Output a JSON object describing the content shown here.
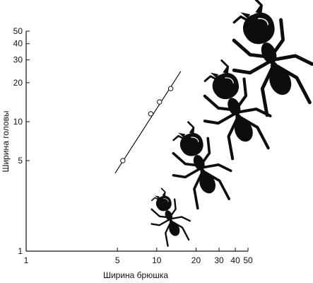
{
  "chart_data": {
    "type": "scatter",
    "x_scale": "log",
    "y_scale": "log",
    "xlabel": "Ширина брюшка",
    "ylabel": "Ширина головы",
    "xlim": [
      1,
      50
    ],
    "ylim": [
      1,
      50
    ],
    "x_ticks": [
      1,
      5,
      10,
      20,
      30,
      40,
      50
    ],
    "y_ticks": [
      1,
      5,
      10,
      20,
      30,
      40,
      50
    ],
    "x_tick_labels": [
      "1",
      "5",
      "10",
      "20",
      "30",
      "40",
      "50"
    ],
    "y_tick_labels": [
      "1",
      "5",
      "10",
      "20",
      "30",
      "40",
      "50"
    ],
    "grid": false,
    "points": [
      {
        "x": 5.5,
        "y": 5.0
      },
      {
        "x": 9.0,
        "y": 11.5
      },
      {
        "x": 10.5,
        "y": 14.2
      },
      {
        "x": 12.8,
        "y": 18.0
      }
    ],
    "fit_line": {
      "x": [
        4.8,
        15.3
      ],
      "y": [
        4.0,
        24.5
      ]
    },
    "illustrations": [
      "ant-small-icon",
      "ant-medium-icon",
      "ant-large-icon",
      "ant-largest-icon"
    ],
    "colors": {
      "ink": "#111111",
      "ant": "#0d0d0d",
      "marker_fill": "#ffffff"
    }
  }
}
